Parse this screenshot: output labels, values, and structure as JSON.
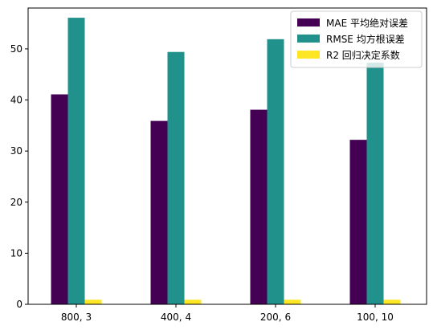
{
  "chart_data": {
    "type": "bar",
    "categories": [
      "800, 3",
      "400, 4",
      "200, 6",
      "100, 10"
    ],
    "series": [
      {
        "name": "MAE 平均绝对误差",
        "color": "#440154",
        "values": [
          41.1,
          35.9,
          38.1,
          32.2
        ]
      },
      {
        "name": "RMSE 均方根误差",
        "color": "#21918c",
        "values": [
          56.1,
          49.4,
          51.9,
          47.3
        ]
      },
      {
        "name": "R2 回归决定系数",
        "color": "#fde725",
        "values": [
          0.9,
          0.9,
          0.9,
          0.9
        ]
      }
    ],
    "ylim": [
      0,
      58
    ],
    "yticks": [
      0,
      10,
      20,
      30,
      40,
      50
    ],
    "legend": "top-right",
    "grid": false
  }
}
